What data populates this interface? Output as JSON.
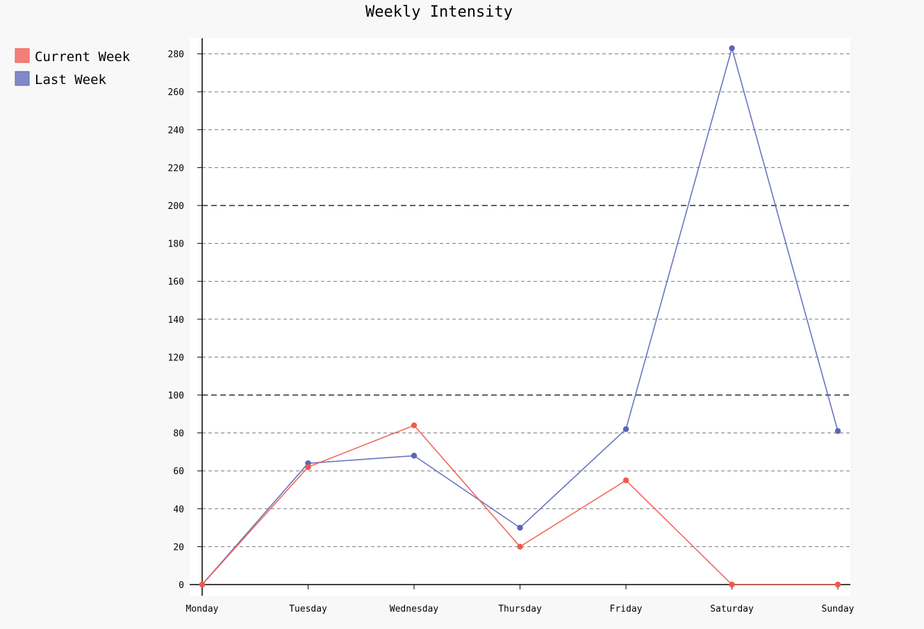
{
  "chart_data": {
    "type": "line",
    "title": "Weekly Intensity",
    "xlabel": "",
    "ylabel": "",
    "categories": [
      "Monday",
      "Tuesday",
      "Wednesday",
      "Thursday",
      "Friday",
      "Saturday",
      "Sunday"
    ],
    "series": [
      {
        "name": "Current Week",
        "values": [
          0,
          62,
          84,
          20,
          55,
          0,
          0
        ],
        "color": "#f0584d"
      },
      {
        "name": "Last Week",
        "values": [
          0,
          64,
          68,
          30,
          82,
          283,
          81
        ],
        "color": "#5866b8"
      }
    ],
    "yticks": [
      0,
      20,
      40,
      60,
      80,
      100,
      120,
      140,
      160,
      180,
      200,
      220,
      240,
      260,
      280
    ],
    "major_yticks": [
      100,
      200
    ],
    "ylim": [
      0,
      288
    ],
    "grid": true,
    "legend_position": "top-left"
  }
}
